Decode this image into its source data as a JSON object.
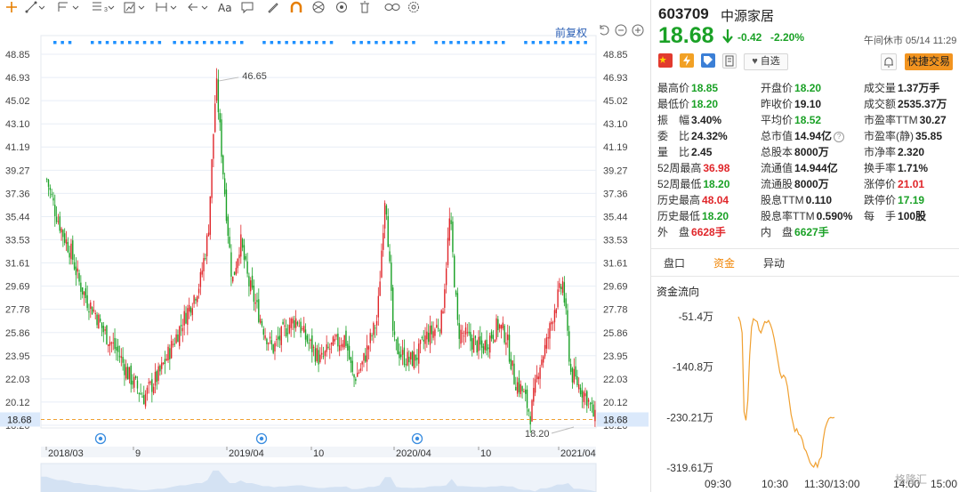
{
  "toolbar": {
    "tools": [
      "crosshair-tool",
      "line-tool",
      "channel-tool",
      "fib-tool",
      "pattern-tool",
      "measure-tool",
      "arrow-tool",
      "text-tool",
      "comment-tool",
      "pencil-tool",
      "magnet-tool",
      "lock-tool",
      "delete-tool",
      "link-tool",
      "settings-tool"
    ],
    "text_label": "Aa"
  },
  "chart": {
    "restore_label": "前复权",
    "high_marker": "46.65",
    "low_marker": "18.20",
    "current_price_label": "18.68",
    "y_ticks": [
      "48.85",
      "46.93",
      "45.02",
      "43.10",
      "41.19",
      "39.27",
      "37.36",
      "35.44",
      "33.53",
      "31.61",
      "29.69",
      "27.78",
      "25.86",
      "23.95",
      "22.03",
      "20.12",
      "18.20"
    ],
    "x_ticks": [
      "2018/03",
      "9",
      "2019/04",
      "10",
      "2020/04",
      "10",
      "2021/04"
    ],
    "colors": {
      "up": "#e0262a",
      "down": "#1aa126",
      "price_line": "#f0a030",
      "grid": "#e8eef6",
      "dots": "#1e90ff"
    }
  },
  "chart_data": {
    "type": "candlestick",
    "y_range": [
      18.2,
      48.85
    ],
    "x_labels": [
      "2018/03",
      "9",
      "2019/04",
      "10",
      "2020/04",
      "10",
      "2021/04"
    ],
    "close_series_approx": [
      38.5,
      36.0,
      34.0,
      32.5,
      30.0,
      28.5,
      27.5,
      26.0,
      25.0,
      24.0,
      22.5,
      21.5,
      20.5,
      21.5,
      22.5,
      24.0,
      25.5,
      27.0,
      28.5,
      30.0,
      34.0,
      46.65,
      38.0,
      30.0,
      33.5,
      30.0,
      28.0,
      26.0,
      24.5,
      25.5,
      26.5,
      27.0,
      25.5,
      24.5,
      23.5,
      24.5,
      25.0,
      25.5,
      22.0,
      23.0,
      25.0,
      27.0,
      37.9,
      25.0,
      24.0,
      23.5,
      24.0,
      25.5,
      26.0,
      27.0,
      35.5,
      26.0,
      25.5,
      25.0,
      24.5,
      25.5,
      26.5,
      25.5,
      22.0,
      21.0,
      19.0,
      23.0,
      25.0,
      28.0,
      30.0,
      22.5,
      21.5,
      20.5,
      18.68
    ],
    "last_price": 18.68,
    "annotated_high": 46.65,
    "annotated_low": 18.2
  },
  "stock": {
    "code": "603709",
    "name": "中源家居",
    "price": "18.68",
    "change": "-0.42",
    "change_pct": "-2.20%",
    "status": "午间休市 05/14 11:29"
  },
  "actions": {
    "watch_label": "自选",
    "quick_trade_label": "快捷交易"
  },
  "quote": [
    [
      {
        "label": "最高价",
        "value": "18.85",
        "c": "v-green"
      },
      {
        "label": "开盘价",
        "value": "18.20",
        "c": "v-green"
      },
      {
        "label": "成交量",
        "value": "1.37万手",
        "c": "v-dark"
      }
    ],
    [
      {
        "label": "最低价",
        "value": "18.20",
        "c": "v-green"
      },
      {
        "label": "昨收价",
        "value": "19.10",
        "c": "v-dark"
      },
      {
        "label": "成交额",
        "value": "2535.37万",
        "c": "v-dark"
      }
    ],
    [
      {
        "label": "振　幅",
        "value": "3.40%",
        "c": "v-dark"
      },
      {
        "label": "平均价",
        "value": "18.52",
        "c": "v-green"
      },
      {
        "label": "市盈率TTM",
        "value": "30.27",
        "c": "v-dark"
      }
    ],
    [
      {
        "label": "委　比",
        "value": "24.32%",
        "c": "v-dark"
      },
      {
        "label": "总市值",
        "value": "14.94亿",
        "c": "v-dark",
        "help": true
      },
      {
        "label": "市盈率(静)",
        "value": "35.85",
        "c": "v-dark"
      }
    ],
    [
      {
        "label": "量　比",
        "value": "2.45",
        "c": "v-dark"
      },
      {
        "label": "总股本",
        "value": "8000万",
        "c": "v-dark"
      },
      {
        "label": "市净率",
        "value": "2.320",
        "c": "v-dark"
      }
    ],
    [
      {
        "label": "52周最高",
        "value": "36.98",
        "c": "v-red"
      },
      {
        "label": "流通值",
        "value": "14.944亿",
        "c": "v-dark"
      },
      {
        "label": "换手率",
        "value": "1.71%",
        "c": "v-dark"
      }
    ],
    [
      {
        "label": "52周最低",
        "value": "18.20",
        "c": "v-green"
      },
      {
        "label": "流通股",
        "value": "8000万",
        "c": "v-dark"
      },
      {
        "label": "涨停价",
        "value": "21.01",
        "c": "v-red"
      }
    ],
    [
      {
        "label": "历史最高",
        "value": "48.04",
        "c": "v-red"
      },
      {
        "label": "股息TTM",
        "value": "0.110",
        "c": "v-dark"
      },
      {
        "label": "跌停价",
        "value": "17.19",
        "c": "v-green"
      }
    ],
    [
      {
        "label": "历史最低",
        "value": "18.20",
        "c": "v-green"
      },
      {
        "label": "股息率TTM",
        "value": "0.590%",
        "c": "v-dark"
      },
      {
        "label": "每　手",
        "value": "100股",
        "c": "v-dark"
      }
    ],
    [
      {
        "label": "外　盘",
        "value": "6628手",
        "c": "v-red"
      },
      {
        "label": "内　盘",
        "value": "6627手",
        "c": "v-green"
      },
      null
    ]
  ],
  "tabs": [
    {
      "label": "盘口",
      "active": false
    },
    {
      "label": "资金",
      "active": true
    },
    {
      "label": "异动",
      "active": false
    }
  ],
  "capital_flow": {
    "title": "资金流向",
    "y_ticks": [
      "-51.4万",
      "-140.8万",
      "-230.21万",
      "-319.61万"
    ],
    "x_ticks": [
      "09:30",
      "10:30",
      "11:30/13:00",
      "14:00",
      "15:00"
    ],
    "watermark": "格隆汇"
  },
  "flow_chart_data": {
    "type": "line",
    "y_range": [
      -319.61,
      -51.4
    ],
    "values": [
      -51.4,
      -60,
      -80,
      -220,
      -235,
      -200,
      -120,
      -70,
      -55,
      -58,
      -60,
      -75,
      -80,
      -70,
      -60,
      -62,
      -58,
      -65,
      -75,
      -90,
      -110,
      -130,
      -150,
      -160,
      -155,
      -160,
      -175,
      -200,
      -225,
      -240,
      -255,
      -250,
      -260,
      -262,
      -270,
      -285,
      -290,
      -300,
      -310,
      -315,
      -318,
      -310,
      -318,
      -305,
      -300,
      -270,
      -250,
      -240,
      -232,
      -230,
      -231,
      -230
    ]
  }
}
